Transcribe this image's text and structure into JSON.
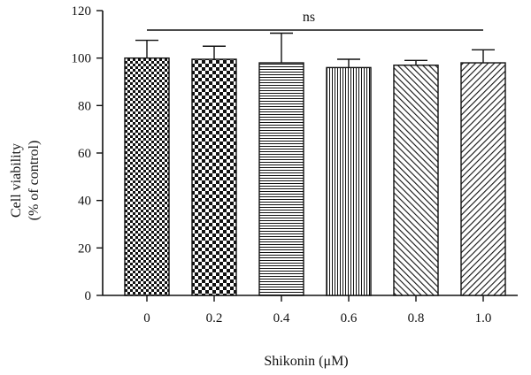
{
  "chart_data": {
    "type": "bar",
    "categories": [
      "0",
      "0.2",
      "0.4",
      "0.6",
      "0.8",
      "1.0"
    ],
    "values": [
      100,
      99.5,
      98,
      96,
      97,
      98
    ],
    "errors": [
      7.5,
      5.5,
      12.5,
      3.5,
      2,
      5.5
    ],
    "patterns": [
      "checker-fine",
      "checker-coarse",
      "horizontal-lines",
      "vertical-lines",
      "diagonal-right",
      "diagonal-left"
    ],
    "ylim": [
      0,
      120
    ],
    "yticks": [
      0,
      20,
      40,
      60,
      80,
      100,
      120
    ],
    "ylabel_line1": "Cell viability",
    "ylabel_line2": "(% of control)",
    "xlabel": "Shikonin (μM)",
    "annotation": "ns",
    "colors": {
      "ink": "#111111",
      "background": "#ffffff"
    }
  }
}
